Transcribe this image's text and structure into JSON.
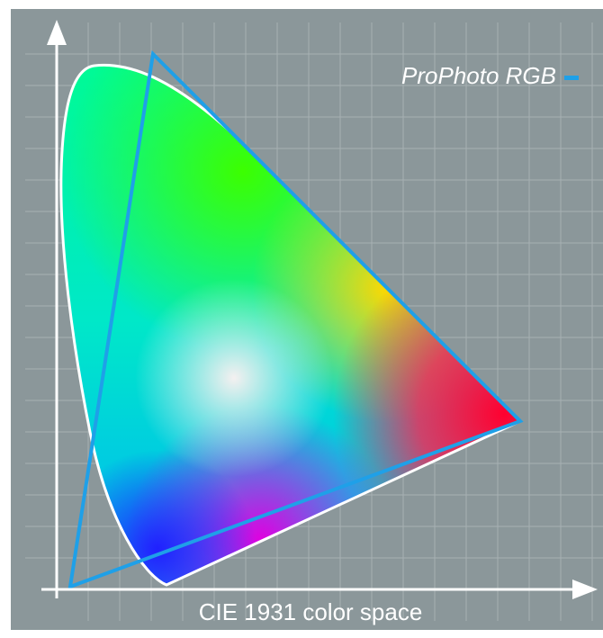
{
  "legend": {
    "label": "ProPhoto RGB"
  },
  "caption": "CIE 1931 color space"
}
